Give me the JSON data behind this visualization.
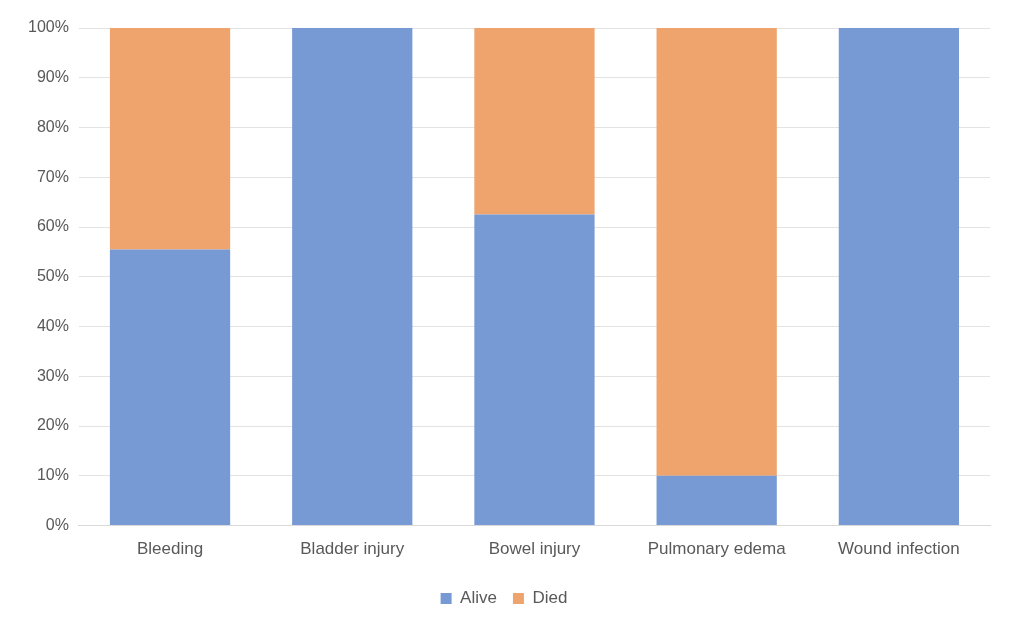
{
  "chart_data": {
    "type": "bar",
    "stacked": true,
    "categories": [
      "Bleeding",
      "Bladder injury",
      "Bowel injury",
      "Pulmonary edema",
      "Wound infection"
    ],
    "series": [
      {
        "name": "Alive",
        "color": "#7799d4",
        "values": [
          55.5,
          100,
          62.5,
          10,
          100
        ]
      },
      {
        "name": "Died",
        "color": "#eea46c",
        "values": [
          44.5,
          0,
          37.5,
          90,
          0
        ]
      }
    ],
    "ylim": [
      0,
      100
    ],
    "yticks": [
      {
        "value": 0,
        "label": "0%"
      },
      {
        "value": 10,
        "label": "10%"
      },
      {
        "value": 20,
        "label": "20%"
      },
      {
        "value": 30,
        "label": "30%"
      },
      {
        "value": 40,
        "label": "40%"
      },
      {
        "value": 50,
        "label": "50%"
      },
      {
        "value": 60,
        "label": "60%"
      },
      {
        "value": 70,
        "label": "70%"
      },
      {
        "value": 80,
        "label": "80%"
      },
      {
        "value": 90,
        "label": "90%"
      },
      {
        "value": 100,
        "label": "100%"
      }
    ],
    "grid": "y",
    "legend": "bottom"
  }
}
